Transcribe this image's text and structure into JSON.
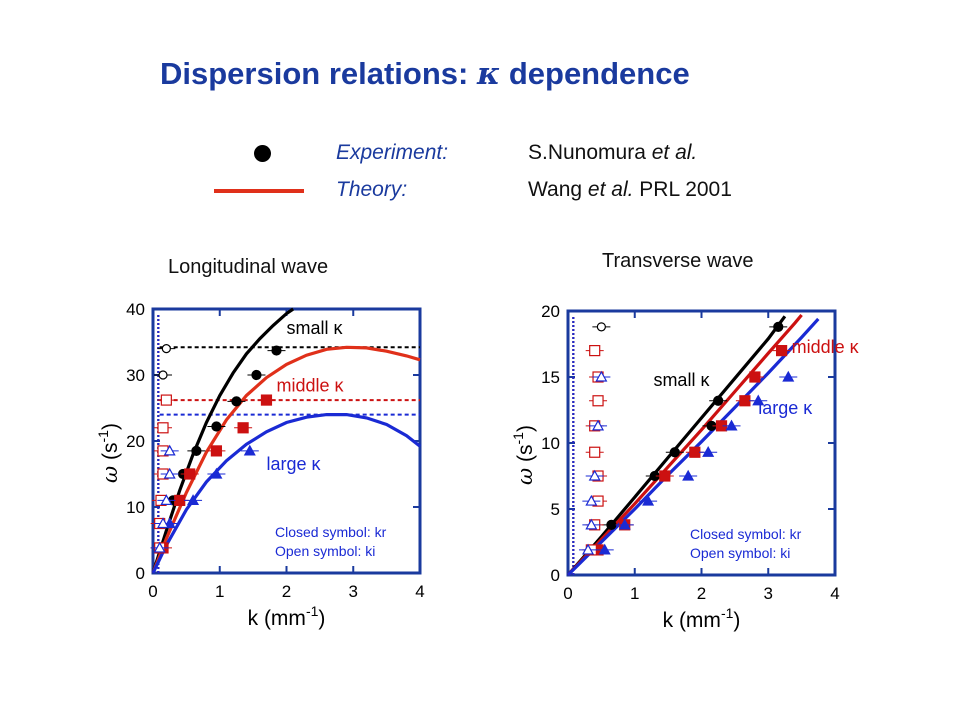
{
  "slide": {
    "title_prefix": "Dispersion relations: ",
    "title_greek": "κ",
    "title_suffix": " dependence"
  },
  "legend": {
    "experiment_label": "Experiment:",
    "experiment_source": "S.Nunomura et al.",
    "theory_label": "Theory:",
    "theory_source": "Wang et al. PRL 2001"
  },
  "colors": {
    "title": "#1a3a9e",
    "axis": "#1a3a9e",
    "theory": "#e0301a",
    "small": "#000000",
    "middle": "#cc1111",
    "large": "#1a2ad4"
  },
  "chart_data": [
    {
      "type": "scatter",
      "title": "Longitudinal wave",
      "xlabel": "k (mm-1)",
      "ylabel": "ω (s-1)",
      "xlim": [
        0,
        4
      ],
      "ylim": [
        0,
        40
      ],
      "xticks": [
        0,
        1,
        2,
        3,
        4
      ],
      "yticks": [
        0,
        10,
        20,
        30,
        40
      ],
      "box_note": [
        "Closed symbol: kr",
        "Open symbol: ki"
      ],
      "annotations": [
        {
          "text": "small κ",
          "x": 2.0,
          "y": 36.2,
          "color": "#000000"
        },
        {
          "text": "middle κ",
          "x": 1.85,
          "y": 27.5,
          "color": "#cc1111"
        },
        {
          "text": "large κ",
          "x": 1.7,
          "y": 15.6,
          "color": "#1a2ad4"
        }
      ],
      "series": [
        {
          "name": "small κ",
          "color": "#000000",
          "theory": [
            [
              0,
              0
            ],
            [
              0.2,
              6.4
            ],
            [
              0.4,
              12.5
            ],
            [
              0.6,
              18.0
            ],
            [
              0.8,
              22.8
            ],
            [
              1.0,
              26.9
            ],
            [
              1.2,
              30.3
            ],
            [
              1.4,
              33.2
            ],
            [
              1.6,
              35.5
            ],
            [
              1.8,
              37.5
            ],
            [
              2.0,
              39.3
            ],
            [
              2.1,
              40
            ]
          ],
          "cutoff": 34.2,
          "kr": [
            [
              0.3,
              11.0
            ],
            [
              0.45,
              15.0
            ],
            [
              0.65,
              18.5
            ],
            [
              0.95,
              22.2
            ],
            [
              1.25,
              26.0
            ],
            [
              1.55,
              30.0
            ],
            [
              1.85,
              33.7
            ]
          ],
          "ki": [
            [
              0.2,
              34.0
            ],
            [
              0.15,
              30.0
            ]
          ]
        },
        {
          "name": "middle κ",
          "color": "#cc1111",
          "theory": [
            [
              0,
              0
            ],
            [
              0.2,
              5.2
            ],
            [
              0.5,
              12.2
            ],
            [
              0.8,
              18.3
            ],
            [
              1.1,
              23.2
            ],
            [
              1.4,
              26.9
            ],
            [
              1.7,
              29.6
            ],
            [
              2.0,
              31.6
            ],
            [
              2.3,
              33.0
            ],
            [
              2.6,
              33.9
            ],
            [
              2.9,
              34.2
            ],
            [
              3.2,
              34.1
            ],
            [
              3.5,
              33.6
            ],
            [
              3.8,
              32.9
            ],
            [
              4.0,
              32.3
            ]
          ],
          "cutoff": 26.2,
          "kr": [
            [
              0.15,
              3.8
            ],
            [
              0.4,
              11.0
            ],
            [
              0.55,
              15.0
            ],
            [
              0.95,
              18.5
            ],
            [
              1.35,
              22.0
            ],
            [
              1.7,
              26.2
            ]
          ],
          "ki": [
            [
              0.2,
              26.2
            ],
            [
              0.15,
              22.0
            ],
            [
              0.15,
              18.5
            ],
            [
              0.15,
              15.0
            ],
            [
              0.12,
              11.0
            ],
            [
              0.1,
              7.5
            ],
            [
              0.1,
              3.8
            ]
          ]
        },
        {
          "name": "large κ",
          "color": "#1a2ad4",
          "theory": [
            [
              0,
              0
            ],
            [
              0.2,
              4.2
            ],
            [
              0.5,
              9.6
            ],
            [
              0.8,
              13.8
            ],
            [
              1.1,
              17.0
            ],
            [
              1.4,
              19.5
            ],
            [
              1.7,
              21.4
            ],
            [
              2.0,
              22.8
            ],
            [
              2.3,
              23.6
            ],
            [
              2.6,
              24.0
            ],
            [
              2.9,
              24.0
            ],
            [
              3.2,
              23.5
            ],
            [
              3.5,
              22.5
            ],
            [
              3.8,
              20.8
            ],
            [
              4.0,
              19.2
            ]
          ],
          "cutoff": 24.0,
          "kr": [
            [
              0.25,
              7.5
            ],
            [
              0.6,
              11.0
            ],
            [
              0.95,
              15.0
            ],
            [
              1.45,
              18.5
            ]
          ],
          "ki": [
            [
              0.25,
              18.5
            ],
            [
              0.25,
              15.0
            ],
            [
              0.2,
              11.0
            ],
            [
              0.15,
              7.5
            ],
            [
              0.1,
              3.8
            ]
          ]
        }
      ]
    },
    {
      "type": "scatter",
      "title": "Transverse wave",
      "xlabel": "k (mm-1)",
      "ylabel": "ω (s-1)",
      "xlim": [
        0,
        4
      ],
      "ylim": [
        0,
        20
      ],
      "xticks": [
        0,
        1,
        2,
        3,
        4
      ],
      "yticks": [
        0,
        5,
        10,
        15,
        20
      ],
      "box_note": [
        "Closed symbol: kr",
        "Open symbol: ki"
      ],
      "annotations": [
        {
          "text": "small κ",
          "x": 1.28,
          "y": 14.3,
          "color": "#000000"
        },
        {
          "text": "middle κ",
          "x": 3.35,
          "y": 16.8,
          "color": "#cc1111"
        },
        {
          "text": "large κ",
          "x": 2.85,
          "y": 12.2,
          "color": "#1a2ad4"
        }
      ],
      "series": [
        {
          "name": "small κ",
          "color": "#000000",
          "theory": [
            [
              0,
              0
            ],
            [
              0.5,
              2.9
            ],
            [
              1.0,
              5.9
            ],
            [
              1.5,
              8.9
            ],
            [
              2.0,
              11.9
            ],
            [
              2.5,
              14.9
            ],
            [
              3.0,
              17.9
            ],
            [
              3.25,
              19.6
            ]
          ],
          "kr": [
            [
              0.65,
              3.8
            ],
            [
              1.3,
              7.5
            ],
            [
              1.6,
              9.3
            ],
            [
              2.15,
              11.3
            ],
            [
              2.25,
              13.2
            ],
            [
              3.15,
              18.8
            ]
          ],
          "ki": [
            [
              0.5,
              18.8
            ]
          ]
        },
        {
          "name": "middle κ",
          "color": "#cc1111",
          "theory": [
            [
              0,
              0
            ],
            [
              0.5,
              2.7
            ],
            [
              1.0,
              5.4
            ],
            [
              1.5,
              8.2
            ],
            [
              2.0,
              11.0
            ],
            [
              2.5,
              13.9
            ],
            [
              3.0,
              16.8
            ],
            [
              3.4,
              19.1
            ],
            [
              3.5,
              19.7
            ]
          ],
          "kr": [
            [
              0.45,
              1.9
            ],
            [
              0.85,
              3.8
            ],
            [
              1.45,
              7.5
            ],
            [
              1.9,
              9.3
            ],
            [
              2.3,
              11.3
            ],
            [
              2.65,
              13.2
            ],
            [
              2.8,
              15.0
            ],
            [
              3.2,
              17.0
            ]
          ],
          "ki": [
            [
              0.4,
              17.0
            ],
            [
              0.45,
              15.0
            ],
            [
              0.45,
              13.2
            ],
            [
              0.4,
              11.3
            ],
            [
              0.4,
              9.3
            ],
            [
              0.45,
              7.5
            ],
            [
              0.45,
              5.6
            ],
            [
              0.4,
              3.8
            ],
            [
              0.35,
              1.9
            ]
          ]
        },
        {
          "name": "large κ",
          "color": "#1a2ad4",
          "theory": [
            [
              0,
              0
            ],
            [
              0.5,
              2.5
            ],
            [
              1.0,
              5.0
            ],
            [
              1.5,
              7.6
            ],
            [
              2.0,
              10.1
            ],
            [
              2.5,
              12.7
            ],
            [
              3.0,
              15.3
            ],
            [
              3.5,
              18.0
            ],
            [
              3.75,
              19.4
            ]
          ],
          "kr": [
            [
              0.55,
              1.9
            ],
            [
              0.85,
              3.8
            ],
            [
              1.2,
              5.6
            ],
            [
              1.8,
              7.5
            ],
            [
              2.1,
              9.3
            ],
            [
              2.45,
              11.3
            ],
            [
              2.85,
              13.2
            ],
            [
              3.3,
              15.0
            ]
          ],
          "ki": [
            [
              0.5,
              15.0
            ],
            [
              0.45,
              11.3
            ],
            [
              0.4,
              7.5
            ],
            [
              0.35,
              5.6
            ],
            [
              0.35,
              3.8
            ],
            [
              0.3,
              1.9
            ]
          ]
        }
      ]
    }
  ]
}
